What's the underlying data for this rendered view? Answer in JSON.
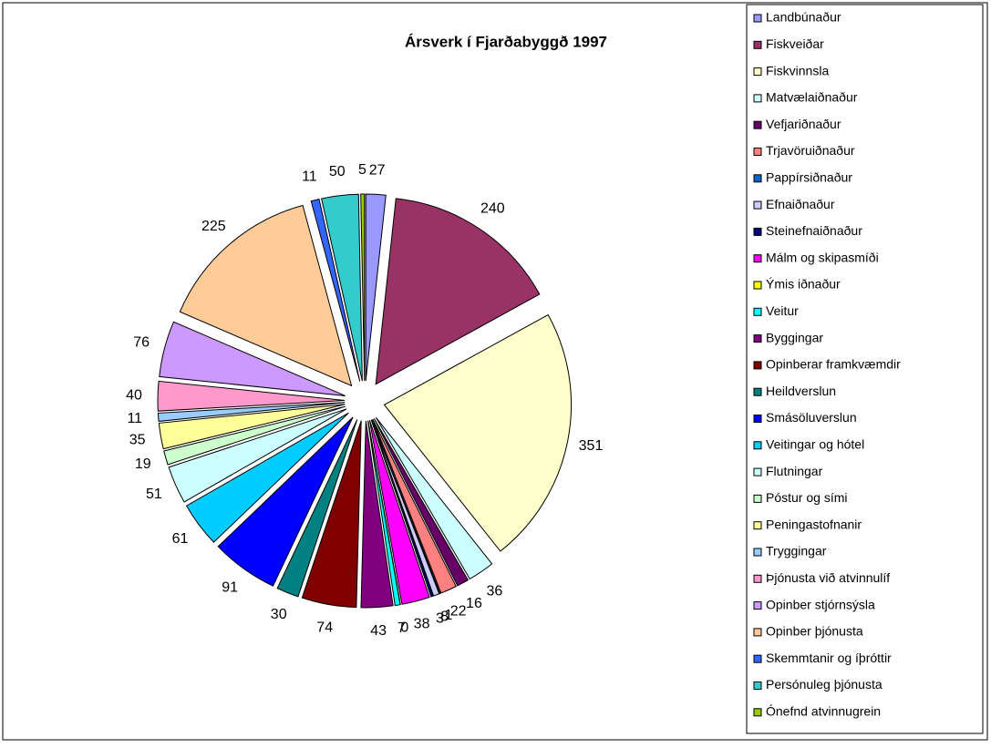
{
  "chart_data": {
    "type": "pie",
    "title": "Ársverk í Fjarðabyggð 1997",
    "categories": [
      "Landbúnaður",
      "Fiskveiðar",
      "Fiskvinnsla",
      "Matvælaiðnaður",
      "Vefjariðnaður",
      "Trjavöruiðnaður",
      "Pappírsiðnaður",
      "Efnaiðnaður",
      "Steinefnaiðnaður",
      "Málm og skipasmíði",
      "Ýmis iðnaður",
      "Veitur",
      "Byggingar",
      "Opinberar framkvæmdir",
      "Heildverslun",
      "Smásöluverslun",
      "Veitingar og hótel",
      "Flutningar",
      "Póstur og sími",
      "Peningastofnanir",
      "Tryggingar",
      "Þjónusta við atvinnulíf",
      "Opinber stjórnsýsla",
      "Opinber þjónusta",
      "Skemmtanir og íþróttir",
      "Persónuleg þjónusta",
      "Ónefnd atvinnugrein"
    ],
    "values": [
      27,
      240,
      351,
      36,
      16,
      22,
      1,
      8,
      3,
      38,
      0,
      7,
      43,
      74,
      30,
      91,
      61,
      51,
      19,
      35,
      11,
      40,
      76,
      225,
      11,
      50,
      5
    ],
    "colors": [
      "#9999ff",
      "#993366",
      "#ffffcc",
      "#ccffff",
      "#660066",
      "#ff8080",
      "#0066cc",
      "#ccccff",
      "#000080",
      "#ff00ff",
      "#ffff00",
      "#00ffff",
      "#800080",
      "#800000",
      "#008080",
      "#0000ff",
      "#00ccff",
      "#ccffff",
      "#ccffcc",
      "#ffff99",
      "#99ccff",
      "#ff99cc",
      "#cc99ff",
      "#ffcc99",
      "#3366ff",
      "#33cccc",
      "#99cc00"
    ],
    "legend": "right"
  }
}
